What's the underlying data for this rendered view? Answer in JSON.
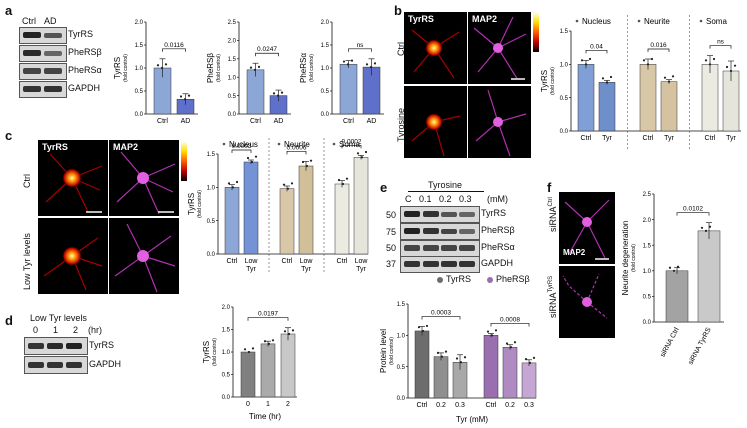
{
  "panels": {
    "a": {
      "letter": "a",
      "lanes": [
        "Ctrl",
        "AD"
      ],
      "blots": [
        "TyrRS",
        "PheRSβ",
        "PheRSα",
        "GAPDH"
      ],
      "charts": [
        {
          "ylabel": "TyrRS",
          "ysub": "(fold control)",
          "categories": [
            "Ctrl",
            "AD"
          ],
          "values": [
            1.0,
            0.32
          ],
          "errors": [
            0.2,
            0.12
          ],
          "ylim": [
            0,
            2.0
          ],
          "ticks": [
            "0.0",
            "0.5",
            "1.0",
            "1.5",
            "2.0"
          ],
          "pval": "0.0116",
          "colors": [
            "#8ca6d6",
            "#5e70c9"
          ]
        },
        {
          "ylabel": "PheRSβ",
          "ysub": "(fold control)",
          "categories": [
            "Ctrl",
            "AD"
          ],
          "values": [
            1.2,
            0.5
          ],
          "errors": [
            0.18,
            0.15
          ],
          "ylim": [
            0,
            2.5
          ],
          "ticks": [
            "0.0",
            "0.5",
            "1.0",
            "1.5",
            "2.0",
            "2.5"
          ],
          "pval": "0.0247",
          "colors": [
            "#8ca6d6",
            "#5e70c9"
          ]
        },
        {
          "ylabel": "PheRSα",
          "ysub": "(fold control)",
          "categories": [
            "Ctrl",
            "AD"
          ],
          "values": [
            1.08,
            1.02
          ],
          "errors": [
            0.08,
            0.18
          ],
          "ylim": [
            0,
            2.0
          ],
          "ticks": [
            "0.0",
            "0.5",
            "1.0",
            "1.5",
            "2.0"
          ],
          "pval": "ns",
          "colors": [
            "#8ca6d6",
            "#5e70c9"
          ]
        }
      ]
    },
    "b": {
      "letter": "b",
      "micro_labels": [
        "TyrRS",
        "MAP2"
      ],
      "row_labels": [
        "Ctrl",
        "Tyrosine"
      ],
      "chart": {
        "ylabel": "TyrRS",
        "ysub": "(fold control)",
        "ylim": [
          0,
          1.5
        ],
        "ticks": [
          "0.0",
          "0.5",
          "1.0",
          "1.5"
        ],
        "groups": [
          {
            "name": "Nucleus",
            "categories": [
              "Ctrl",
              "Tyr"
            ],
            "values": [
              1.0,
              0.73
            ],
            "errors": [
              0.06,
              0.03
            ],
            "pval": "0.04",
            "colors": [
              "#7f9fd6",
              "#6f8fcb"
            ]
          },
          {
            "name": "Neurite",
            "categories": [
              "Ctrl",
              "Tyr"
            ],
            "values": [
              1.0,
              0.74
            ],
            "errors": [
              0.08,
              0.03
            ],
            "pval": "0.016",
            "colors": [
              "#d9c8a8",
              "#d4c2a0"
            ]
          },
          {
            "name": "Soma",
            "categories": [
              "Ctrl",
              "Tyr"
            ],
            "values": [
              1.0,
              0.9
            ],
            "errors": [
              0.13,
              0.15
            ],
            "pval": "ns",
            "colors": [
              "#ecebe2",
              "#e6e5dc"
            ]
          }
        ]
      }
    },
    "c": {
      "letter": "c",
      "micro_labels": [
        "TyrRS",
        "MAP2"
      ],
      "row_labels": [
        "Ctrl",
        "Low Tyr levels"
      ],
      "chart": {
        "ylabel": "TyrRS",
        "ysub": "(fold control)",
        "ylim": [
          0,
          1.5
        ],
        "ticks": [
          "0.0",
          "0.5",
          "1.0",
          "1.5"
        ],
        "groups": [
          {
            "name": "Nucleus",
            "categories": [
              "Ctrl",
              "Low Tyr"
            ],
            "values": [
              1.0,
              1.38
            ],
            "errors": [
              0.04,
              0.03
            ],
            "pval": "0.0003",
            "colors": [
              "#8ca6d6",
              "#7393d6"
            ]
          },
          {
            "name": "Neurite",
            "categories": [
              "Ctrl",
              "Low Tyr"
            ],
            "values": [
              0.98,
              1.32
            ],
            "errors": [
              0.04,
              0.07
            ],
            "pval": "0.0006",
            "colors": [
              "#d9c8a8",
              "#d1bf9a"
            ]
          },
          {
            "name": "Soma",
            "categories": [
              "Ctrl",
              "Low Tyr"
            ],
            "values": [
              1.05,
              1.45
            ],
            "errors": [
              0.05,
              0.03
            ],
            "pval": "0.0002",
            "colors": [
              "#ecebe2",
              "#e6e5dc"
            ]
          }
        ]
      }
    },
    "d": {
      "letter": "d",
      "blot_title": "Low Tyr levels",
      "lanes": [
        "0",
        "1",
        "2"
      ],
      "lane_unit": "(hr)",
      "blots": [
        "TyrRS",
        "GAPDH"
      ],
      "chart": {
        "ylabel": "TyrRS",
        "ysub": "(fold control)",
        "xlabel": "Time (hr)",
        "categories": [
          "0",
          "1",
          "2"
        ],
        "values": [
          1.0,
          1.18,
          1.4
        ],
        "errors": [
          0.0,
          0.06,
          0.14
        ],
        "ylim": [
          0,
          2.0
        ],
        "ticks": [
          "0.0",
          "0.5",
          "1.0",
          "1.5",
          "2.0"
        ],
        "pval": "0.0197",
        "colors": [
          "#808080",
          "#aaaaaa",
          "#c8c8c8"
        ]
      }
    },
    "e": {
      "letter": "e",
      "blot_title": "Tyrosine",
      "unit": "(mM)",
      "lanes": [
        "C",
        "0.1",
        "0.2",
        "0.3"
      ],
      "blots": [
        "TyrRS",
        "PheRSβ",
        "PheRSα",
        "GAPDH"
      ],
      "mw": [
        "50",
        "75",
        "50",
        "37"
      ],
      "legend": [
        "TyrRS",
        "PheRSβ"
      ],
      "chart": {
        "ylabel": "Protein level",
        "ysub": "(fold control)",
        "xlabel": "Tyr (mM)",
        "ylim": [
          0,
          1.5
        ],
        "ticks": [
          "0.0",
          "0.5",
          "1.0",
          "1.5"
        ],
        "groups": [
          {
            "name": "TyrRS",
            "categories": [
              "Ctrl",
              "0.2",
              "0.3"
            ],
            "values": [
              1.07,
              0.66,
              0.57
            ],
            "errors": [
              0.07,
              0.06,
              0.12
            ],
            "pval": "0.0003",
            "colors": [
              "#6d6d6d",
              "#8f8f8f",
              "#a9a9a9"
            ]
          },
          {
            "name": "PheRSβ",
            "categories": [
              "Ctrl",
              "0.2",
              "0.3"
            ],
            "values": [
              1.0,
              0.81,
              0.56
            ],
            "errors": [
              0.03,
              0.04,
              0.05
            ],
            "pval": "0.0008",
            "colors": [
              "#9a6fb0",
              "#b08bc2",
              "#c6a6d2"
            ]
          }
        ]
      }
    },
    "f": {
      "letter": "f",
      "micro_labels": [
        "siRNA",
        "siRNA"
      ],
      "micro_sups": [
        "Ctrl",
        "TyrRS"
      ],
      "map2": "MAP2",
      "chart": {
        "ylabel": "Neurite degeneration",
        "ysub": "(fold control)",
        "categories": [
          "siRNA Ctrl",
          "siRNA TyrRS"
        ],
        "values": [
          1.0,
          1.78
        ],
        "errors": [
          0.06,
          0.16
        ],
        "ylim": [
          0,
          2.5
        ],
        "ticks": [
          "0.0",
          "0.5",
          "1.0",
          "1.5",
          "2.0",
          "2.5"
        ],
        "pval": "0.0102",
        "colors": [
          "#a3a3a3",
          "#c9c9c9"
        ]
      }
    }
  }
}
